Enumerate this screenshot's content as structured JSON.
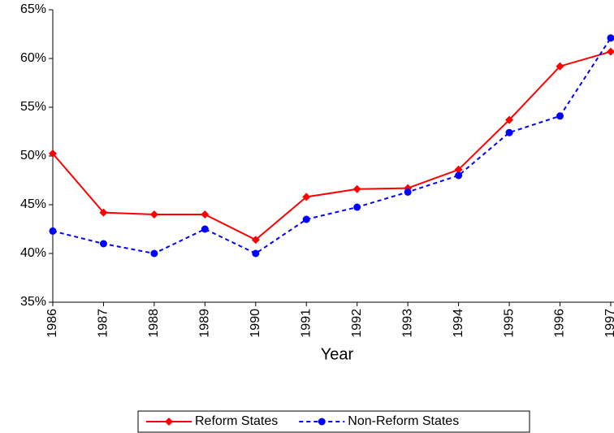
{
  "chart_data": {
    "type": "line",
    "x_label": "Year",
    "categories": [
      "1986",
      "1987",
      "1988",
      "1989",
      "1990",
      "1991",
      "1992",
      "1993",
      "1994",
      "1995",
      "1996",
      "1997"
    ],
    "series": [
      {
        "name": "Reform States",
        "color": "#ff0000",
        "line_style": "solid",
        "marker": "diamond",
        "values": [
          50.25,
          44.2,
          44.0,
          44.0,
          41.4,
          45.8,
          46.6,
          46.7,
          48.6,
          53.7,
          59.2,
          60.7
        ]
      },
      {
        "name": "Non-Reform States",
        "color": "#0000ff",
        "line_style": "dashed",
        "marker": "circle",
        "values": [
          42.3,
          41.0,
          40.0,
          42.5,
          40.0,
          43.5,
          44.75,
          46.3,
          48.0,
          52.4,
          54.1,
          62.1
        ]
      }
    ],
    "ylim": [
      35,
      65
    ],
    "yticks": [
      {
        "value": 35,
        "label": "35%"
      },
      {
        "value": 40,
        "label": "40%"
      },
      {
        "value": 45,
        "label": "45%"
      },
      {
        "value": 50,
        "label": "50%"
      },
      {
        "value": 55,
        "label": "55%"
      },
      {
        "value": 60,
        "label": "60%"
      },
      {
        "value": 65,
        "label": "65%"
      }
    ],
    "grid": false,
    "legend": "bottom"
  }
}
